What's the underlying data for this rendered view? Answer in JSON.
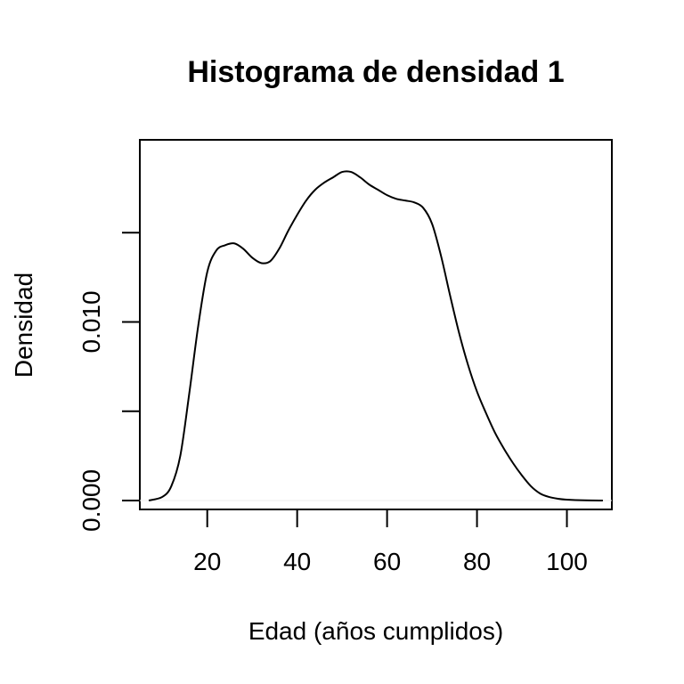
{
  "chart_data": {
    "type": "line",
    "title": "Histograma de densidad 1",
    "xlabel": "Edad (años cumplidos)",
    "ylabel": "Densidad",
    "xlim": [
      5,
      110
    ],
    "ylim": [
      -0.0005,
      0.0202
    ],
    "x_ticks": [
      20,
      40,
      60,
      80,
      100
    ],
    "x_tick_labels": [
      "20",
      "40",
      "60",
      "80",
      "100"
    ],
    "y_ticks": [
      0.0,
      0.005,
      0.01,
      0.015
    ],
    "y_tick_labels": [
      "0.000",
      "",
      "0.010",
      ""
    ],
    "grid": false,
    "legend": "none",
    "series": [
      {
        "x": [
          7,
          10,
          12,
          14,
          16,
          18,
          20,
          22,
          24,
          26,
          28,
          30,
          32,
          34,
          36,
          38,
          40,
          42,
          44,
          46,
          48,
          50,
          52,
          54,
          56,
          58,
          60,
          62,
          64,
          66,
          68,
          70,
          72,
          74,
          76,
          78,
          80,
          82,
          84,
          86,
          88,
          90,
          92,
          94,
          96,
          98,
          100,
          104,
          108
        ],
        "y": [
          0.0,
          0.0002,
          0.0008,
          0.0025,
          0.006,
          0.0098,
          0.0128,
          0.014,
          0.0143,
          0.0144,
          0.0141,
          0.0136,
          0.0133,
          0.0134,
          0.0141,
          0.0151,
          0.016,
          0.0168,
          0.0174,
          0.0178,
          0.0181,
          0.0184,
          0.0184,
          0.0181,
          0.0177,
          0.0174,
          0.0171,
          0.0169,
          0.0168,
          0.0167,
          0.0164,
          0.0155,
          0.0137,
          0.0115,
          0.0094,
          0.0076,
          0.0061,
          0.0049,
          0.0038,
          0.0029,
          0.0021,
          0.0014,
          0.0008,
          0.0004,
          0.0002,
          0.0001,
          5e-05,
          1e-05,
          0.0
        ]
      }
    ]
  }
}
